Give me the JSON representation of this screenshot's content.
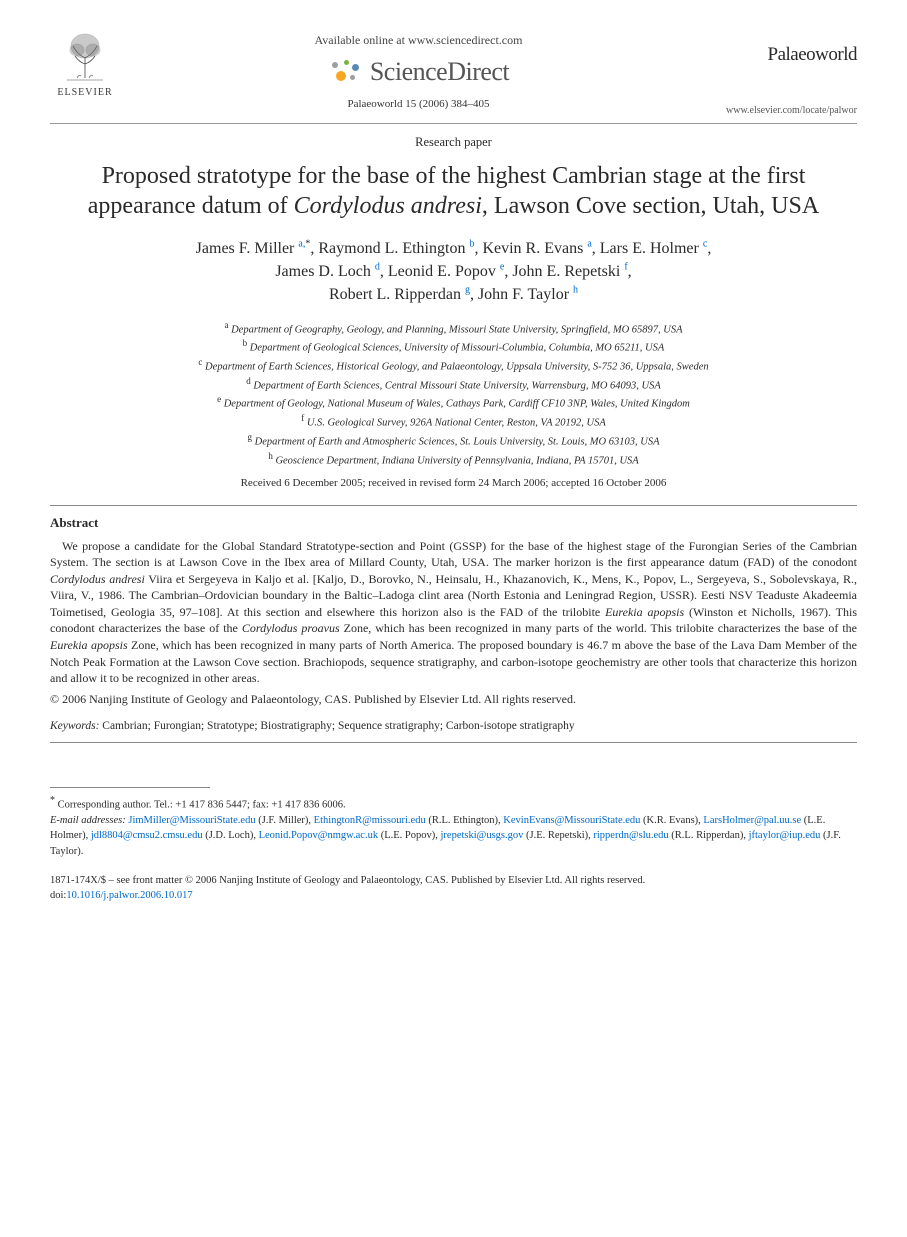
{
  "header": {
    "available_text": "Available online at www.sciencedirect.com",
    "sd_brand": "ScienceDirect",
    "citation": "Palaeoworld 15 (2006) 384–405",
    "elsevier_label": "ELSEVIER",
    "journal_name": "Palaeoworld",
    "journal_url": "www.elsevier.com/locate/palwor"
  },
  "paper_type": "Research paper",
  "title_pre": "Proposed stratotype for the base of the highest Cambrian stage at the first appearance datum of ",
  "title_italic": "Cordylodus andresi",
  "title_post": ", Lawson Cove section, Utah, USA",
  "authors": [
    {
      "name": "James F. Miller",
      "sup": "a,",
      "star": "*"
    },
    {
      "name": "Raymond L. Ethington",
      "sup": "b"
    },
    {
      "name": "Kevin R. Evans",
      "sup": "a"
    },
    {
      "name": "Lars E. Holmer",
      "sup": "c"
    },
    {
      "name": "James D. Loch",
      "sup": "d"
    },
    {
      "name": "Leonid E. Popov",
      "sup": "e"
    },
    {
      "name": "John E. Repetski",
      "sup": "f"
    },
    {
      "name": "Robert L. Ripperdan",
      "sup": "g"
    },
    {
      "name": "John F. Taylor",
      "sup": "h"
    }
  ],
  "affiliations": [
    {
      "sup": "a",
      "text": "Department of Geography, Geology, and Planning, Missouri State University, Springfield, MO 65897, USA"
    },
    {
      "sup": "b",
      "text": "Department of Geological Sciences, University of Missouri-Columbia, Columbia, MO 65211, USA"
    },
    {
      "sup": "c",
      "text": "Department of Earth Sciences, Historical Geology, and Palaeontology, Uppsala University, S-752 36, Uppsala, Sweden"
    },
    {
      "sup": "d",
      "text": "Department of Earth Sciences, Central Missouri State University, Warrensburg, MO 64093, USA"
    },
    {
      "sup": "e",
      "text": "Department of Geology, National Museum of Wales, Cathays Park, Cardiff CF10 3NP, Wales, United Kingdom"
    },
    {
      "sup": "f",
      "text": "U.S. Geological Survey, 926A National Center, Reston, VA 20192, USA"
    },
    {
      "sup": "g",
      "text": "Department of Earth and Atmospheric Sciences, St. Louis University, St. Louis, MO 63103, USA"
    },
    {
      "sup": "h",
      "text": "Geoscience Department, Indiana University of Pennsylvania, Indiana, PA 15701, USA"
    }
  ],
  "dates": "Received 6 December 2005; received in revised form 24 March 2006; accepted 16 October 2006",
  "abstract_label": "Abstract",
  "abstract_parts": [
    {
      "t": "We propose a candidate for the Global Standard Stratotype-section and Point (GSSP) for the base of the highest stage of the Furongian Series of the Cambrian System. The section is at Lawson Cove in the Ibex area of Millard County, Utah, USA. The marker horizon is the first appearance datum (FAD) of the conodont "
    },
    {
      "t": "Cordylodus andresi",
      "i": true
    },
    {
      "t": " Viira et Sergeyeva in Kaljo et al. [Kaljo, D., Borovko, N., Heinsalu, H., Khazanovich, K., Mens, K., Popov, L., Sergeyeva, S., Sobolevskaya, R., Viira, V., 1986. The Cambrian–Ordovician boundary in the Baltic–Ladoga clint area (North Estonia and Leningrad Region, USSR). Eesti NSV Teaduste Akadeemia Toimetised, Geologia 35, 97–108]. At this section and elsewhere this horizon also is the FAD of the trilobite "
    },
    {
      "t": "Eurekia apopsis",
      "i": true
    },
    {
      "t": " (Winston et Nicholls, 1967). This conodont characterizes the base of the "
    },
    {
      "t": "Cordylodus proavus",
      "i": true
    },
    {
      "t": " Zone, which has been recognized in many parts of the world. This trilobite characterizes the base of the "
    },
    {
      "t": "Eurekia apopsis",
      "i": true
    },
    {
      "t": " Zone, which has been recognized in many parts of North America. The proposed boundary is 46.7 m above the base of the Lava Dam Member of the Notch Peak Formation at the Lawson Cove section. Brachiopods, sequence stratigraphy, and carbon-isotope geochemistry are other tools that characterize this horizon and allow it to be recognized in other areas."
    }
  ],
  "copyright": "© 2006 Nanjing Institute of Geology and Palaeontology, CAS. Published by Elsevier Ltd. All rights reserved.",
  "keywords_label": "Keywords:",
  "keywords": "Cambrian; Furongian; Stratotype; Biostratigraphy; Sequence stratigraphy; Carbon-isotope stratigraphy",
  "corr": {
    "star": "*",
    "label": "Corresponding author. Tel.: +1 417 836 5447; fax: +1 417 836 6006.",
    "email_label": "E-mail addresses:",
    "emails": [
      {
        "addr": "JimMiller@MissouriState.edu",
        "who": " (J.F. Miller), "
      },
      {
        "addr": "EthingtonR@missouri.edu",
        "who": " (R.L. Ethington), "
      },
      {
        "addr": "KevinEvans@MissouriState.edu",
        "who": " (K.R. Evans), "
      },
      {
        "addr": "LarsHolmer@pal.uu.se",
        "who": " (L.E. Holmer), "
      },
      {
        "addr": "jdl8804@cmsu2.cmsu.edu",
        "who": " (J.D. Loch), "
      },
      {
        "addr": "Leonid.Popov@nmgw.ac.uk",
        "who": " (L.E. Popov), "
      },
      {
        "addr": "jrepetski@usgs.gov",
        "who": " (J.E. Repetski), "
      },
      {
        "addr": "ripperdn@slu.edu",
        "who": " (R.L. Ripperdan), "
      },
      {
        "addr": "jftaylor@iup.edu",
        "who": " (J.F. Taylor)."
      }
    ]
  },
  "bottom": {
    "front_matter": "1871-174X/$ – see front matter © 2006 Nanjing Institute of Geology and Palaeontology, CAS. Published by Elsevier Ltd. All rights reserved.",
    "doi_label": "doi:",
    "doi": "10.1016/j.palwor.2006.10.017"
  },
  "colors": {
    "link": "#0068c9",
    "text": "#2a2a2a",
    "rule": "#888888",
    "sd_orange": "#f5a623",
    "sd_green": "#7cb342",
    "sd_blue": "#5b8bb5",
    "sd_gray": "#9e9e9e"
  }
}
